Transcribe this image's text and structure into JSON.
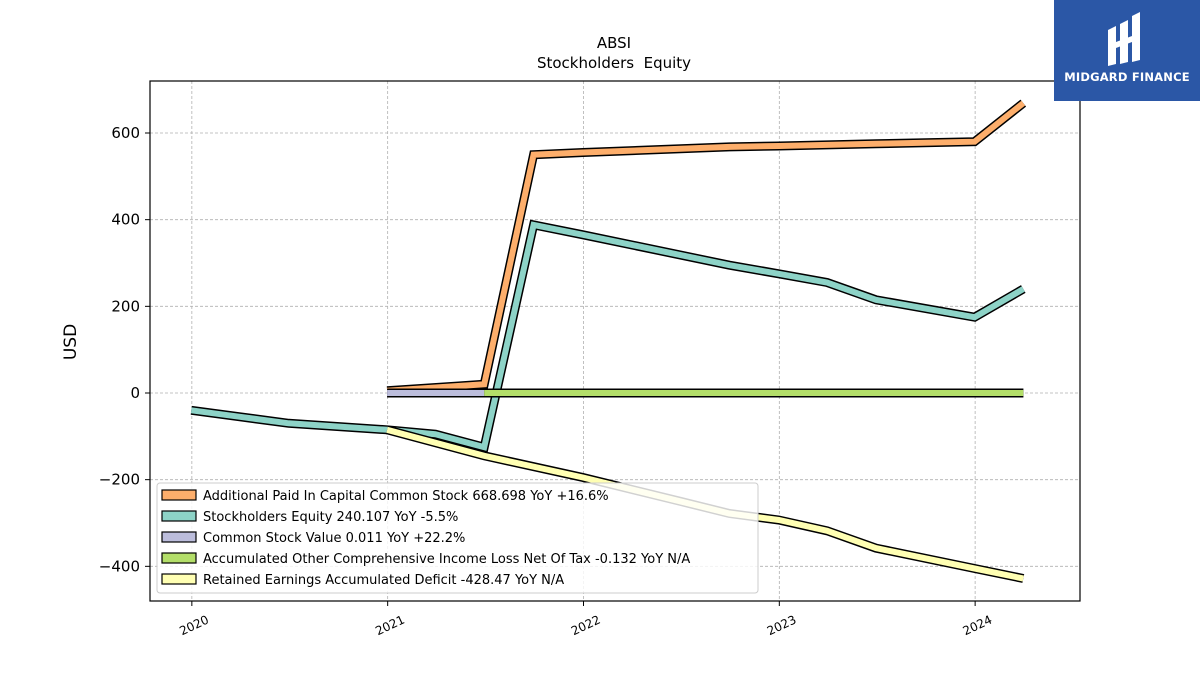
{
  "chart_data": {
    "type": "line",
    "title": "ABSI",
    "subtitle": "Stockholders  Equity",
    "ylabel": "USD",
    "xlabel": "",
    "xlim": [
      "2019-10-15",
      "2024-07-15"
    ],
    "ylim": [
      -480,
      720
    ],
    "x_ticks": [
      "2020",
      "2021",
      "2022",
      "2023",
      "2024"
    ],
    "y_ticks": [
      600,
      400,
      200,
      0,
      -200,
      -400
    ],
    "y_tick_labels": [
      "600",
      "400",
      "200",
      "0",
      "−200",
      "−400"
    ],
    "grid": true,
    "legend_position": "lower-left",
    "series": [
      {
        "name": "Additional Paid In Capital Common Stock",
        "legend_label": "Additional Paid In Capital Common Stock  668.698 YoY +16.6%",
        "color": "#fdae6b",
        "x": [
          "2020-12-31",
          "2021-06-30",
          "2021-09-30",
          "2021-12-31",
          "2022-09-30",
          "2022-12-31",
          "2023-06-30",
          "2023-12-31",
          "2024-03-31"
        ],
        "y": [
          5,
          20,
          550,
          555,
          568,
          570,
          575,
          580,
          669
        ]
      },
      {
        "name": "Stockholders Equity",
        "legend_label": "Stockholders Equity  240.107 YoY -5.5%",
        "color": "#8dd3c7",
        "x": [
          "2019-12-31",
          "2020-03-31",
          "2020-06-30",
          "2020-12-31",
          "2021-03-31",
          "2021-06-30",
          "2021-09-30",
          "2021-12-31",
          "2022-09-30",
          "2022-12-31",
          "2023-03-31",
          "2023-06-30",
          "2023-12-31",
          "2024-03-31"
        ],
        "y": [
          -40,
          -55,
          -70,
          -85,
          -95,
          -125,
          388,
          365,
          295,
          275,
          255,
          215,
          175,
          240
        ]
      },
      {
        "name": "Common Stock Value",
        "legend_label": "Common Stock Value  0.011 YoY +22.2%",
        "color": "#bcbddc",
        "x": [
          "2020-12-31",
          "2024-03-31"
        ],
        "y": [
          0.011,
          0.011
        ]
      },
      {
        "name": "Accumulated Other Comprehensive Income Loss Net Of Tax",
        "legend_label": "Accumulated Other Comprehensive Income Loss Net Of Tax  -0.132 YoY N/A",
        "color": "#b3de69",
        "x": [
          "2021-06-30",
          "2024-03-31"
        ],
        "y": [
          0,
          0
        ]
      },
      {
        "name": "Retained Earnings Accumulated Deficit",
        "legend_label": "Retained Earnings Accumulated Deficit  -428.47 YoY N/A",
        "color": "#ffffb3",
        "x": [
          "2020-12-31",
          "2021-06-30",
          "2021-12-31",
          "2022-06-30",
          "2022-09-30",
          "2022-12-31",
          "2023-03-31",
          "2023-06-30",
          "2023-12-31",
          "2024-03-31"
        ],
        "y": [
          -85,
          -145,
          -195,
          -250,
          -278,
          -293,
          -318,
          -358,
          -405,
          -428
        ]
      }
    ]
  },
  "logo": {
    "name": "MIDGARD FINANCE",
    "background": "#2b57a6"
  }
}
